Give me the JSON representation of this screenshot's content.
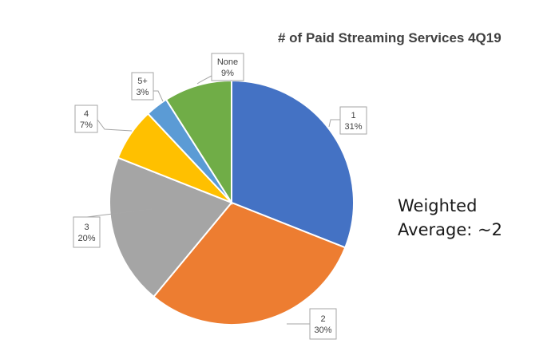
{
  "chart_data": {
    "type": "pie",
    "title": "# of Paid Streaming Services 4Q19",
    "slices": [
      {
        "label": "1",
        "value": 31,
        "value_label": "31%",
        "color": "#4472C4"
      },
      {
        "label": "2",
        "value": 30,
        "value_label": "30%",
        "color": "#ED7D31"
      },
      {
        "label": "3",
        "value": 20,
        "value_label": "20%",
        "color": "#A5A5A5"
      },
      {
        "label": "4",
        "value": 7,
        "value_label": "7%",
        "color": "#FFC000"
      },
      {
        "label": "5+",
        "value": 3,
        "value_label": "3%",
        "color": "#5B9BD5"
      },
      {
        "label": "None",
        "value": 9,
        "value_label": "9%",
        "color": "#70AD47"
      }
    ],
    "legend": "none"
  },
  "annotation": {
    "line1": "Weighted",
    "line2": "Average: ~2"
  }
}
